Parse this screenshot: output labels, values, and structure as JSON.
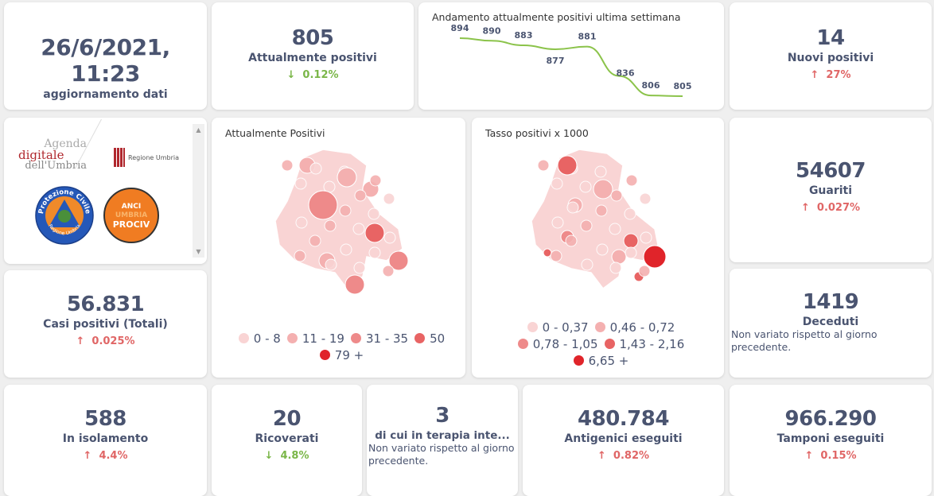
{
  "update": {
    "value": "26/6/2021, 11:23",
    "label": "aggiornamento dati"
  },
  "attualmente": {
    "value": "805",
    "label": "Attualmente positivi",
    "delta": "0.12%",
    "dir": "down"
  },
  "nuovi": {
    "value": "14",
    "label": "Nuovi positivi",
    "delta": "27%",
    "dir": "up"
  },
  "guariti": {
    "value": "54607",
    "label": "Guariti",
    "delta": "0.027%",
    "dir": "up"
  },
  "casi": {
    "value": "56.831",
    "label": "Casi positivi (Totali)",
    "delta": "0.025%",
    "dir": "up"
  },
  "deceduti": {
    "value": "1419",
    "label": "Deceduti",
    "note": "Non variato rispetto al giorno precedente."
  },
  "isolamento": {
    "value": "588",
    "label": "In isolamento",
    "delta": "4.4%",
    "dir": "up"
  },
  "ricoverati": {
    "value": "20",
    "label": "Ricoverati",
    "delta": "4.8%",
    "dir": "down"
  },
  "terapia": {
    "value": "3",
    "label": "di cui in terapia inte...",
    "note": "Non variato rispetto al giorno precedente."
  },
  "antigenici": {
    "value": "480.784",
    "label": "Antigenici eseguiti",
    "delta": "0.82%",
    "dir": "up"
  },
  "tamponi": {
    "value": "966.290",
    "label": "Tamponi eseguiti",
    "delta": "0.15%",
    "dir": "up"
  },
  "logos": {
    "agenda": [
      "Agenda",
      "digitale",
      "dell'Umbria"
    ],
    "regione": "Regione Umbria",
    "protezione": "Protezione Civile",
    "protezione_sub": "Regione Umbria",
    "anci": [
      "ANCI",
      "UMBRIA",
      "PROCIV"
    ]
  },
  "map1": {
    "title": "Attualmente Positivi",
    "legend": [
      {
        "label": "0 - 8",
        "color": "#f9d4d4"
      },
      {
        "label": "11 - 19",
        "color": "#f4b0b0"
      },
      {
        "label": "31 - 35",
        "color": "#ee8a8a"
      },
      {
        "label": "50",
        "color": "#e86464"
      },
      {
        "label": "79 +",
        "color": "#e0242a"
      }
    ]
  },
  "map2": {
    "title": "Tasso positivi x 1000",
    "legend": [
      {
        "label": "0 - 0,37",
        "color": "#f9d4d4"
      },
      {
        "label": "0,46 - 0,72",
        "color": "#f4b0b0"
      },
      {
        "label": "0,78 - 1,05",
        "color": "#ee8a8a"
      },
      {
        "label": "1,43 - 2,16",
        "color": "#e86464"
      },
      {
        "label": "6,65 +",
        "color": "#e0242a"
      }
    ]
  },
  "colors": {
    "up": "#e06666",
    "down": "#7ab648",
    "line": "#8bc34a"
  },
  "chart_data": {
    "type": "line",
    "title": "Andamento attualmente positivi ultima settimana",
    "values": [
      894,
      890,
      883,
      877,
      881,
      836,
      806,
      805
    ],
    "ylim": [
      805,
      894
    ]
  }
}
